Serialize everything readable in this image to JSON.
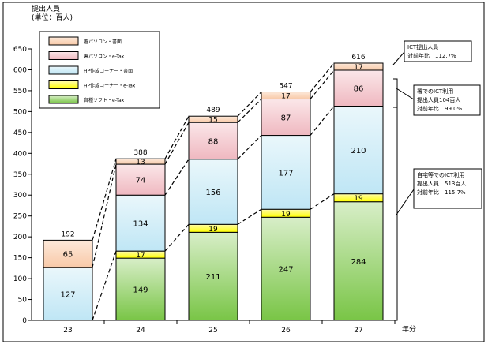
{
  "chart_data": {
    "type": "bar",
    "stacked": true,
    "y_title": "提出人員",
    "y_unit": "(単位：百人)",
    "x_unit": "年分",
    "categories": [
      "23",
      "24",
      "25",
      "26",
      "27"
    ],
    "ylim": [
      0,
      650
    ],
    "yticks": [
      0,
      50,
      100,
      150,
      200,
      250,
      300,
      350,
      400,
      450,
      500,
      550,
      600,
      650
    ],
    "series": [
      {
        "name": "各種ソフト・e-Tax",
        "color_top": "#d8eec8",
        "color_bottom": "#79c546",
        "values": [
          null,
          149,
          211,
          247,
          284
        ]
      },
      {
        "name": "HP作成コーナー・e-Tax",
        "color_top": "#fffbb0",
        "color_bottom": "#ffff00",
        "values": [
          null,
          17,
          19,
          19,
          19
        ]
      },
      {
        "name": "HP作成コーナー・書面",
        "color_top": "#eaf7fb",
        "color_bottom": "#bfe6f5",
        "values": [
          127,
          134,
          156,
          177,
          210
        ]
      },
      {
        "name": "署パソコン・e-Tax",
        "color_top": "#fbe7e9",
        "color_bottom": "#efb8c0",
        "values": [
          null,
          74,
          88,
          87,
          86
        ]
      },
      {
        "name": "署パソコン・書面",
        "color_top": "#fde9da",
        "color_bottom": "#f8c9a8",
        "values": [
          65,
          13,
          15,
          17,
          17
        ]
      }
    ],
    "totals": [
      192,
      388,
      489,
      547,
      616
    ],
    "legend_order": [
      "署パソコン・書面",
      "署パソコン・e-Tax",
      "HP作成コーナー・書面",
      "HP作成コーナー・e-Tax",
      "各種ソフト・e-Tax"
    ],
    "legend_position": "top-left",
    "grid": false
  },
  "callouts": [
    {
      "lines": [
        "ICT提出人員",
        "対前年比　112.7%"
      ]
    },
    {
      "lines": [
        "署でのICT利用",
        "提出人員104百人",
        "対前年比　99.0%"
      ]
    },
    {
      "lines": [
        "自宅等でのICT利用",
        "提出人員　513百人",
        "対前年比　115.7%"
      ]
    }
  ]
}
